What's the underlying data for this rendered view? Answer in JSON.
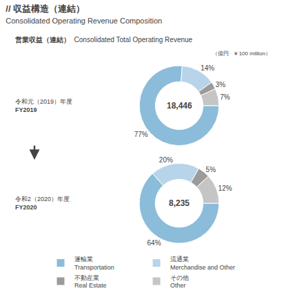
{
  "chart_data": [
    {
      "type": "pie",
      "title": "// 収益構造（連結）",
      "subtitle": "Consolidated Operating Revenue Composition",
      "annotations": [
        "営業収益（連結）",
        "Consolidated Total Operating Revenue",
        "（億円　¥ 100 million）",
        "令和元（2019）年度",
        "FY2019",
        "18,446"
      ],
      "categories": [
        "運輸業\nTransportation",
        "流通業\nMerchandise and Other",
        "不動産業\nReal Estate",
        "その他\nOther"
      ],
      "values": [
        77,
        14,
        3,
        7
      ],
      "value_labels": [
        "77%",
        "14%",
        "3%",
        "7%"
      ],
      "colors": [
        "#8bbcd9",
        "#b8d4ea",
        "#9b9b9b",
        "#c5c5c5"
      ],
      "data_labels": true,
      "legend": "bottom"
    },
    {
      "type": "pie",
      "annotations": [
        "令和2（2020）年度",
        "FY2020",
        "8,235"
      ],
      "categories": [
        "運輸業\nTransportation",
        "流通業\nMerchandise and Other",
        "不動産業\nReal Estate",
        "その他\nOther"
      ],
      "values": [
        64,
        20,
        5,
        12
      ],
      "value_labels": [
        "64%",
        "20%",
        "5%",
        "12%"
      ],
      "colors": [
        "#8bbcd9",
        "#b8d4ea",
        "#9b9b9b",
        "#c5c5c5"
      ],
      "data_labels": true,
      "legend": "bottom"
    }
  ]
}
